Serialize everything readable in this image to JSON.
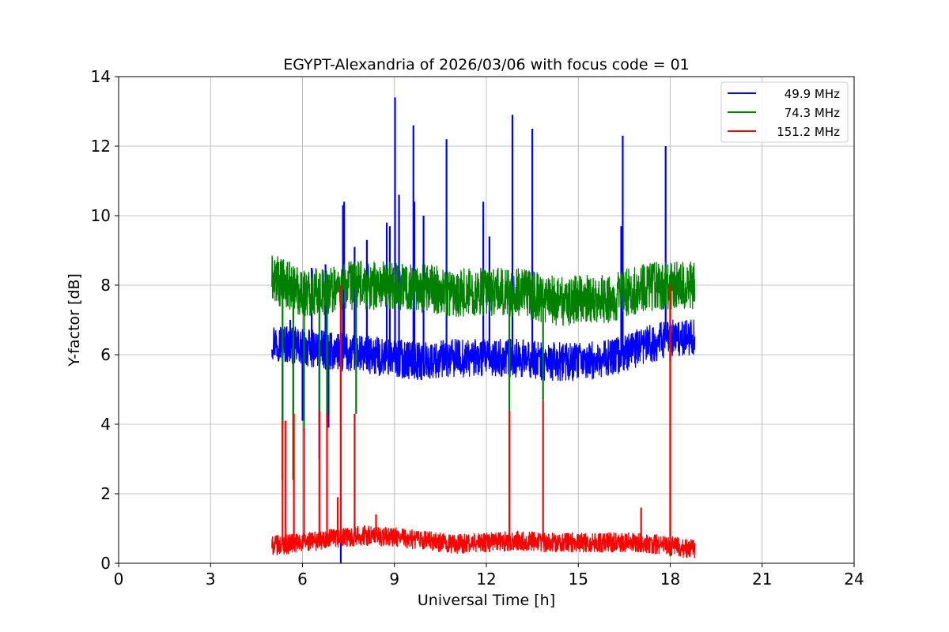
{
  "chart_data": {
    "type": "line",
    "title": "EGYPT-Alexandria of 2026/03/06 with focus code = 01",
    "xlabel": "Universal Time [h]",
    "ylabel": "Y-factor [dB]",
    "xlim": [
      0,
      24
    ],
    "ylim": [
      0,
      14
    ],
    "x_ticks": [
      "0",
      "3",
      "6",
      "9",
      "12",
      "15",
      "18",
      "21",
      "24"
    ],
    "y_ticks": [
      "0",
      "2",
      "4",
      "6",
      "8",
      "10",
      "12",
      "14"
    ],
    "grid": true,
    "legend_position": "top-right",
    "series": [
      {
        "name": "49.9 MHz",
        "color": "#0000ff",
        "base": [
          [
            5.0,
            6.4
          ],
          [
            5.5,
            6.3
          ],
          [
            6.0,
            6.2
          ],
          [
            7.0,
            6.1
          ],
          [
            8.0,
            6.0
          ],
          [
            9.0,
            5.9
          ],
          [
            10.0,
            5.8
          ],
          [
            11.0,
            5.9
          ],
          [
            12.0,
            5.9
          ],
          [
            13.0,
            5.9
          ],
          [
            14.0,
            5.8
          ],
          [
            15.0,
            5.8
          ],
          [
            16.0,
            5.9
          ],
          [
            17.0,
            6.2
          ],
          [
            18.0,
            6.5
          ],
          [
            18.8,
            6.5
          ]
        ],
        "band": 0.55,
        "spikes": [
          [
            5.3,
            6.2
          ],
          [
            5.35,
            2.4
          ],
          [
            5.6,
            7.0
          ],
          [
            5.7,
            2.4
          ],
          [
            6.0,
            4.1
          ],
          [
            6.3,
            8.5
          ],
          [
            6.55,
            3.0
          ],
          [
            6.75,
            8.6
          ],
          [
            6.85,
            3.9
          ],
          [
            7.25,
            0.0
          ],
          [
            7.32,
            10.3
          ],
          [
            7.36,
            10.4
          ],
          [
            7.7,
            9.1
          ],
          [
            8.1,
            9.3
          ],
          [
            8.75,
            9.8
          ],
          [
            8.85,
            9.7
          ],
          [
            9.02,
            13.4
          ],
          [
            9.15,
            10.6
          ],
          [
            9.62,
            12.6
          ],
          [
            9.65,
            10.4
          ],
          [
            9.95,
            10.0
          ],
          [
            10.7,
            12.2
          ],
          [
            11.9,
            10.4
          ],
          [
            12.1,
            9.4
          ],
          [
            12.85,
            12.9
          ],
          [
            13.5,
            12.5
          ],
          [
            16.45,
            12.3
          ],
          [
            16.4,
            9.7
          ],
          [
            17.85,
            12.0
          ],
          [
            18.0,
            5.8
          ]
        ]
      },
      {
        "name": "74.3 MHz",
        "color": "#008000",
        "base": [
          [
            5.0,
            8.2
          ],
          [
            5.5,
            8.0
          ],
          [
            6.0,
            7.8
          ],
          [
            6.5,
            7.8
          ],
          [
            7.0,
            7.9
          ],
          [
            7.5,
            8.0
          ],
          [
            8.0,
            8.0
          ],
          [
            9.0,
            8.0
          ],
          [
            10.0,
            7.9
          ],
          [
            11.0,
            7.8
          ],
          [
            12.0,
            7.8
          ],
          [
            13.0,
            7.8
          ],
          [
            14.0,
            7.6
          ],
          [
            14.6,
            7.5
          ],
          [
            15.0,
            7.6
          ],
          [
            16.0,
            7.6
          ],
          [
            17.0,
            7.9
          ],
          [
            18.0,
            8.0
          ],
          [
            18.8,
            8.0
          ]
        ],
        "band": 0.7,
        "spikes": [
          [
            5.35,
            2.4
          ],
          [
            5.7,
            2.4
          ],
          [
            6.05,
            3.8
          ],
          [
            6.55,
            4.0
          ],
          [
            6.8,
            4.2
          ],
          [
            7.25,
            5.5
          ],
          [
            7.75,
            4.3
          ],
          [
            12.75,
            4.4
          ],
          [
            13.85,
            4.7
          ],
          [
            18.0,
            0.2
          ]
        ]
      },
      {
        "name": "151.2 MHz",
        "color": "#ff0000",
        "base": [
          [
            5.0,
            0.5
          ],
          [
            6.0,
            0.6
          ],
          [
            7.0,
            0.7
          ],
          [
            8.0,
            0.8
          ],
          [
            9.0,
            0.75
          ],
          [
            10.0,
            0.65
          ],
          [
            11.0,
            0.55
          ],
          [
            12.0,
            0.6
          ],
          [
            13.0,
            0.65
          ],
          [
            14.0,
            0.6
          ],
          [
            15.0,
            0.6
          ],
          [
            16.0,
            0.6
          ],
          [
            17.0,
            0.6
          ],
          [
            18.0,
            0.5
          ],
          [
            18.8,
            0.4
          ]
        ],
        "band": 0.28,
        "spikes": [
          [
            5.35,
            4.1
          ],
          [
            5.45,
            4.1
          ],
          [
            5.72,
            4.3
          ],
          [
            6.05,
            3.9
          ],
          [
            6.55,
            4.4
          ],
          [
            6.8,
            4.3
          ],
          [
            7.15,
            1.9
          ],
          [
            7.25,
            8.0
          ],
          [
            7.7,
            4.3
          ],
          [
            8.4,
            1.4
          ],
          [
            12.75,
            4.4
          ],
          [
            13.85,
            4.7
          ],
          [
            17.05,
            1.6
          ],
          [
            18.0,
            8.0
          ]
        ]
      }
    ]
  }
}
